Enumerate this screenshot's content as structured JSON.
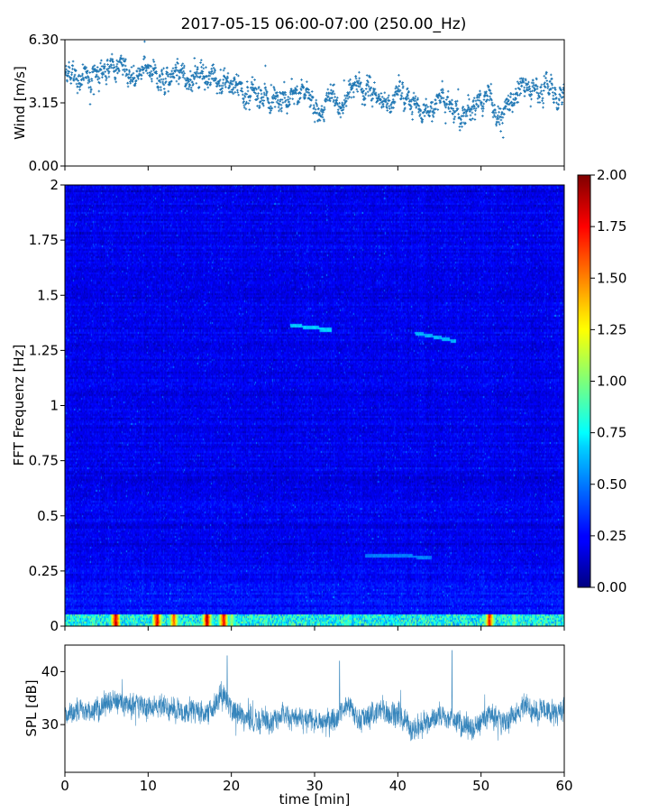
{
  "title": "2017-05-15 06:00-07:00 (250.00_Hz)",
  "chart_data": [
    {
      "type": "scatter",
      "name": "wind",
      "ylabel": "Wind [m/s]",
      "xlim": [
        0,
        60
      ],
      "ylim": [
        0,
        6.3
      ],
      "yticks": [
        "0.00",
        "3.15",
        "6.30"
      ],
      "marker_color": "#1f77b4",
      "profile_t_min": [
        0,
        1,
        2,
        3,
        4,
        5,
        6,
        7,
        8,
        9,
        10,
        11,
        12,
        13,
        14,
        15,
        16,
        17,
        18,
        19,
        20,
        21,
        22,
        23,
        24,
        25,
        26,
        27,
        28,
        29,
        30,
        31,
        32,
        33,
        34,
        35,
        36,
        37,
        38,
        39,
        40,
        41,
        42,
        43,
        44,
        45,
        46,
        47,
        48,
        49,
        50,
        51,
        52,
        53,
        54,
        55,
        56,
        57,
        58,
        59,
        60
      ],
      "profile_wind_ms": [
        4.3,
        4.4,
        4.4,
        4.5,
        4.6,
        4.7,
        4.9,
        5.0,
        4.7,
        4.5,
        4.6,
        4.2,
        4.5,
        4.4,
        4.5,
        4.4,
        4.5,
        4.6,
        4.4,
        4.2,
        4.1,
        3.9,
        3.6,
        3.7,
        3.4,
        3.2,
        3.6,
        3.7,
        3.8,
        3.6,
        2.6,
        3.1,
        3.7,
        3.2,
        3.3,
        3.8,
        3.9,
        3.7,
        3.2,
        3.3,
        3.4,
        3.5,
        3.3,
        2.7,
        2.9,
        3.3,
        3.4,
        2.8,
        2.6,
        2.8,
        3.3,
        3.9,
        2.3,
        2.8,
        3.5,
        4.0,
        4.1,
        3.9,
        4.0,
        3.5,
        3.8
      ]
    },
    {
      "type": "heatmap",
      "name": "spectrogram",
      "ylabel": "FFT Frequenz [Hz]",
      "xlim": [
        0,
        60
      ],
      "ylim": [
        0,
        2
      ],
      "yticks": [
        "0",
        "0.25",
        "0.5",
        "0.75",
        "1",
        "1.25",
        "1.5",
        "1.75",
        "2"
      ],
      "colorbar": {
        "min": 0,
        "max": 2,
        "ticks": [
          "0.00",
          "0.25",
          "0.50",
          "0.75",
          "1.00",
          "1.25",
          "1.50",
          "1.75",
          "2.00"
        ],
        "colormap": "jet"
      },
      "background_level": 0.22,
      "low_freq_band_hz": [
        0,
        0.05
      ],
      "low_freq_band_level": 0.9,
      "hot_spots": [
        {
          "t_min": 6,
          "level": 1.8
        },
        {
          "t_min": 11,
          "level": 1.75
        },
        {
          "t_min": 13,
          "level": 1.6
        },
        {
          "t_min": 17,
          "level": 1.9
        },
        {
          "t_min": 19,
          "level": 1.7
        },
        {
          "t_min": 20,
          "level": 1.0
        },
        {
          "t_min": 34,
          "level": 0.85
        },
        {
          "t_min": 51,
          "level": 1.7
        },
        {
          "t_min": 54,
          "level": 0.9
        }
      ],
      "traces": [
        {
          "t_min": [
            27,
            32
          ],
          "f_hz": [
            1.36,
            1.34
          ],
          "level": 0.6
        },
        {
          "t_min": [
            42,
            47
          ],
          "f_hz": [
            1.33,
            1.29
          ],
          "level": 0.55
        },
        {
          "t_min": [
            36,
            44
          ],
          "f_hz": [
            0.32,
            0.31
          ],
          "level": 0.45
        }
      ]
    },
    {
      "type": "line",
      "name": "spl",
      "ylabel": "SPL [dB]",
      "xlabel": "time [min]",
      "xlim": [
        0,
        60
      ],
      "ylim": [
        21,
        45
      ],
      "yticks": [
        "30",
        "40"
      ],
      "xticks": [
        "0",
        "10",
        "20",
        "30",
        "40",
        "50",
        "60"
      ],
      "line_color": "#1f77b4",
      "profile_t_min": [
        0,
        1,
        2,
        3,
        4,
        5,
        6,
        7,
        8,
        9,
        10,
        11,
        12,
        13,
        14,
        15,
        16,
        17,
        18,
        19,
        20,
        21,
        22,
        23,
        24,
        25,
        26,
        27,
        28,
        29,
        30,
        31,
        32,
        33,
        34,
        35,
        36,
        37,
        38,
        39,
        40,
        41,
        42,
        43,
        44,
        45,
        46,
        47,
        48,
        49,
        50,
        51,
        52,
        53,
        54,
        55,
        56,
        57,
        58,
        59,
        60
      ],
      "profile_spl_db": [
        32,
        32.5,
        33,
        32,
        33,
        34,
        34.5,
        34,
        33.5,
        34,
        33,
        34,
        33,
        33.5,
        32,
        33,
        32.5,
        32,
        33.5,
        36,
        33,
        32,
        31,
        30.5,
        31,
        30.5,
        32,
        31.5,
        31,
        30.5,
        31,
        30,
        31,
        32,
        34,
        31.5,
        31,
        32,
        33,
        32.5,
        32,
        30.5,
        29,
        30,
        31,
        32,
        31,
        30.5,
        30,
        29,
        30.5,
        32,
        31,
        30.5,
        32,
        33.5,
        33,
        32.5,
        33,
        32,
        33
      ],
      "amplitude_db": 3.5,
      "peaks": [
        {
          "t_min": 19.5,
          "spl_db": 43
        },
        {
          "t_min": 46.5,
          "spl_db": 44
        },
        {
          "t_min": 33,
          "spl_db": 42
        }
      ]
    }
  ]
}
